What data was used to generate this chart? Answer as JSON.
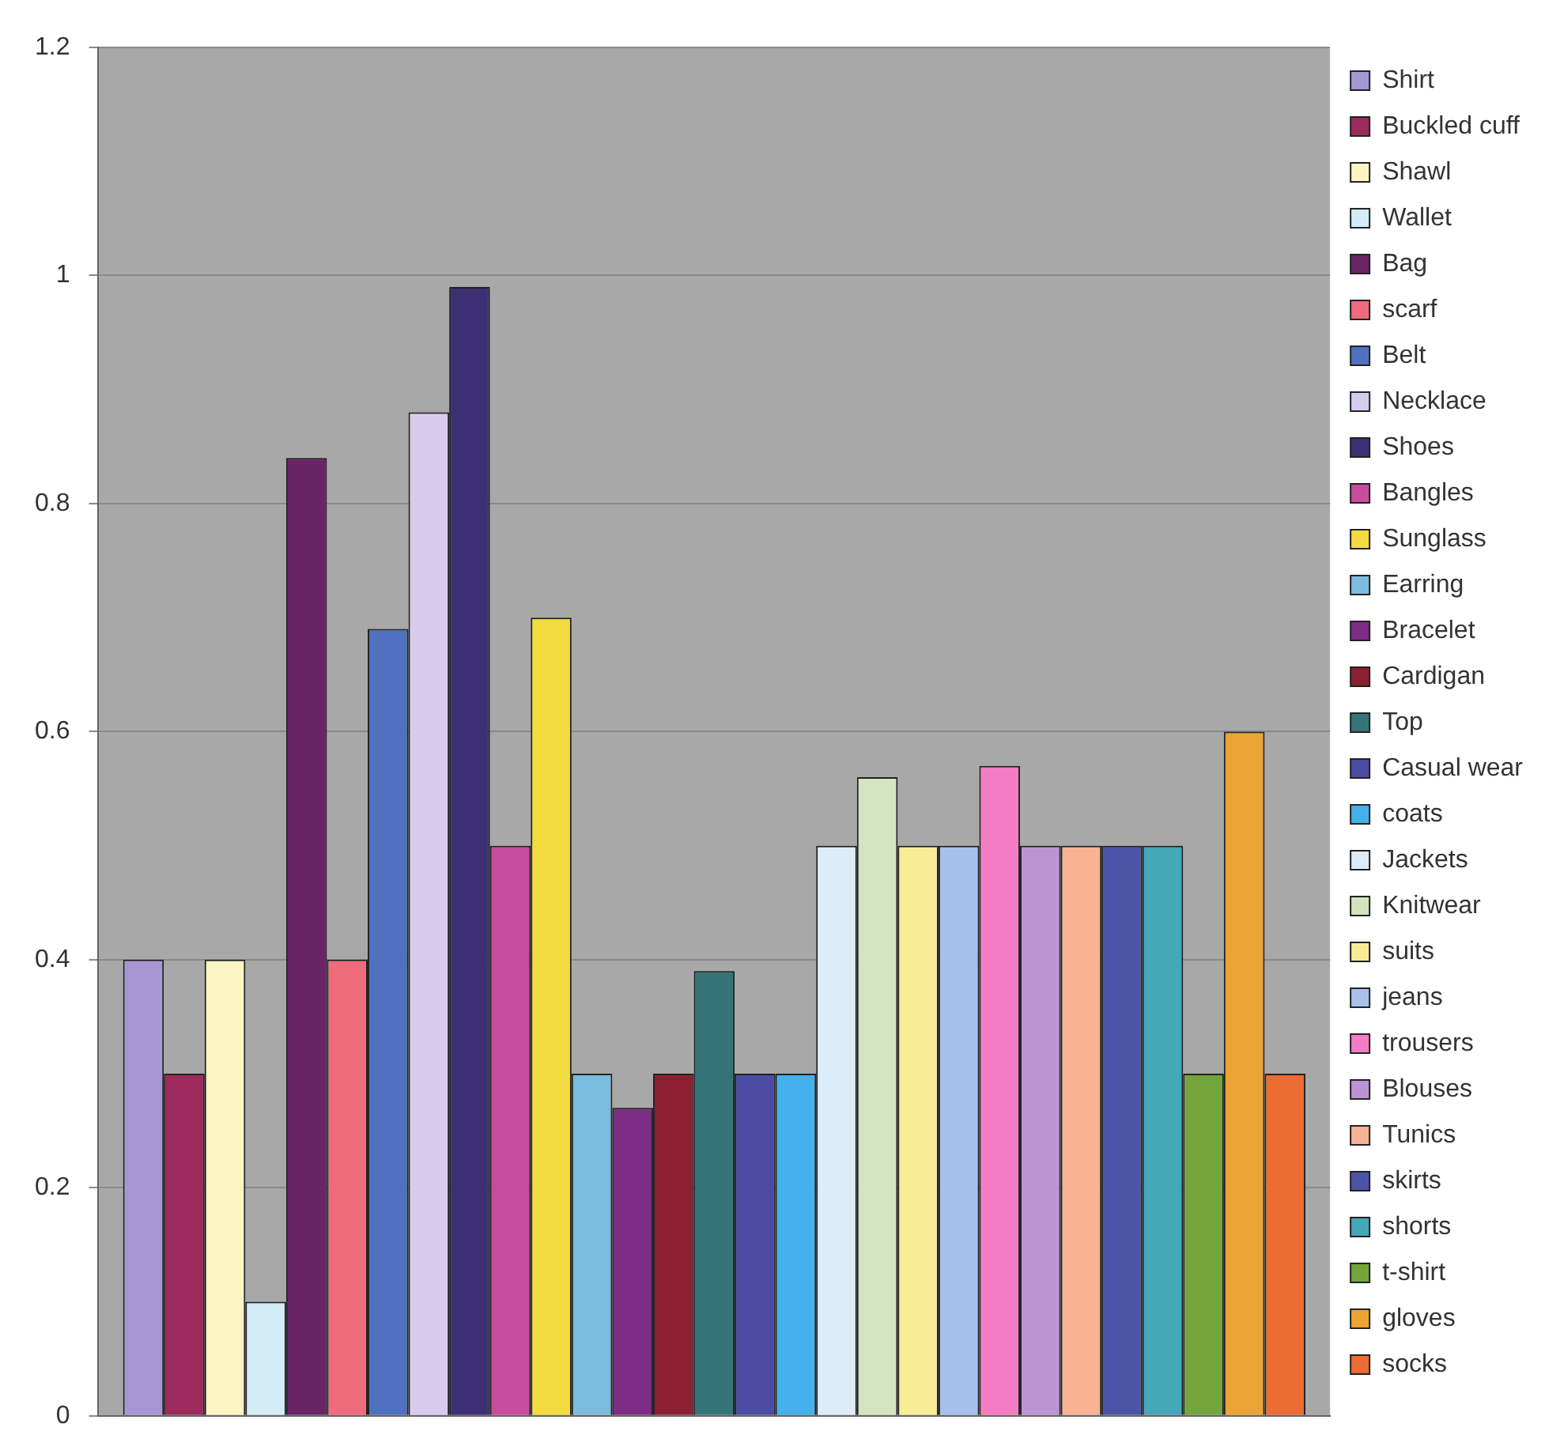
{
  "chart_data": {
    "type": "bar",
    "categories": [
      null
    ],
    "ylim": [
      0,
      1.2
    ],
    "yticks": [
      0,
      0.2,
      0.4,
      0.6,
      0.8,
      1,
      1.2
    ],
    "grid": "y",
    "legend": "right",
    "series": [
      {
        "name": "Shirt",
        "color": "#a896d4",
        "values": [
          0.4
        ]
      },
      {
        "name": "Buckled cuff",
        "color": "#9c2a5c",
        "values": [
          0.3
        ]
      },
      {
        "name": "Shawl",
        "color": "#fbf5c4",
        "values": [
          0.4
        ]
      },
      {
        "name": "Wallet",
        "color": "#d4ecf8",
        "values": [
          0.1
        ]
      },
      {
        "name": "Bag",
        "color": "#6a2466",
        "values": [
          0.84
        ]
      },
      {
        "name": "scarf",
        "color": "#ee6c7c",
        "values": [
          0.4
        ]
      },
      {
        "name": "Belt",
        "color": "#5070c0",
        "values": [
          0.69
        ]
      },
      {
        "name": "Necklace",
        "color": "#d8ccee",
        "values": [
          0.88
        ]
      },
      {
        "name": "Shoes",
        "color": "#3c2f74",
        "values": [
          0.99
        ]
      },
      {
        "name": "Bangles",
        "color": "#c84c9c",
        "values": [
          0.5
        ]
      },
      {
        "name": "Sunglass",
        "color": "#f4dc40",
        "values": [
          0.7
        ]
      },
      {
        "name": "Earring",
        "color": "#7cbcdc",
        "values": [
          0.3
        ]
      },
      {
        "name": "Bracelet",
        "color": "#7c2c84",
        "values": [
          0.27
        ]
      },
      {
        "name": "Cardigan",
        "color": "#8c2030",
        "values": [
          0.3
        ]
      },
      {
        "name": "Top",
        "color": "#347478",
        "values": [
          0.39
        ]
      },
      {
        "name": "Casual wear",
        "color": "#4c4ca4",
        "values": [
          0.3
        ]
      },
      {
        "name": "coats",
        "color": "#44b0ec",
        "values": [
          0.3
        ]
      },
      {
        "name": "Jackets",
        "color": "#dcecf8",
        "values": [
          0.5
        ]
      },
      {
        "name": "Knitwear",
        "color": "#d4e4c0",
        "values": [
          0.56
        ]
      },
      {
        "name": "suits",
        "color": "#f8ec98",
        "values": [
          0.5
        ]
      },
      {
        "name": "jeans",
        "color": "#a8c0ec",
        "values": [
          0.5
        ]
      },
      {
        "name": "trousers",
        "color": "#f47cc4",
        "values": [
          0.57
        ]
      },
      {
        "name": "Blouses",
        "color": "#bc94d4",
        "values": [
          0.5
        ]
      },
      {
        "name": "Tunics",
        "color": "#f8b494",
        "values": [
          0.5
        ]
      },
      {
        "name": "skirts",
        "color": "#4c54a8",
        "values": [
          0.5
        ]
      },
      {
        "name": "shorts",
        "color": "#44a8b8",
        "values": [
          0.5
        ]
      },
      {
        "name": "t-shirt",
        "color": "#74a43c",
        "values": [
          0.3
        ]
      },
      {
        "name": "gloves",
        "color": "#eca434",
        "values": [
          0.6
        ]
      },
      {
        "name": "socks",
        "color": "#ec6c34",
        "values": [
          0.3
        ]
      }
    ]
  }
}
